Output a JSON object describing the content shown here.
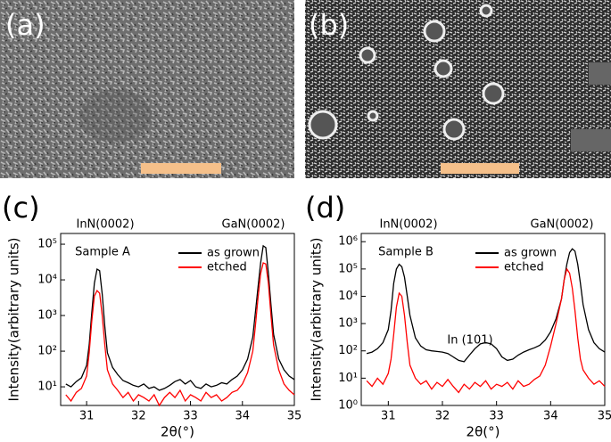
{
  "images": [
    {
      "label": "(a)"
    },
    {
      "label": "(b)"
    }
  ],
  "chart_data": [
    {
      "type": "line",
      "panel_label": "(c)",
      "xlabel": "2θ(°)",
      "ylabel": "Intensity(arbitrary units)",
      "log_y": true,
      "annotations": [
        "InN(0002)",
        "GaN(0002)",
        "Sample A"
      ],
      "x": [
        30.6,
        30.7,
        30.8,
        30.9,
        31.0,
        31.05,
        31.1,
        31.15,
        31.2,
        31.25,
        31.3,
        31.35,
        31.4,
        31.5,
        31.6,
        31.7,
        31.8,
        31.9,
        32.0,
        32.1,
        32.2,
        32.3,
        32.4,
        32.5,
        32.6,
        32.7,
        32.8,
        32.9,
        33.0,
        33.1,
        33.2,
        33.3,
        33.4,
        33.5,
        33.6,
        33.7,
        33.8,
        33.9,
        34.0,
        34.1,
        34.2,
        34.25,
        34.3,
        34.35,
        34.4,
        34.45,
        34.5,
        34.55,
        34.6,
        34.7,
        34.8,
        34.9,
        35.0
      ],
      "series": [
        {
          "name": "as grown",
          "color": "#000000",
          "values": [
            12,
            10,
            14,
            18,
            40,
            150,
            1200,
            8000,
            20000,
            18000,
            4000,
            500,
            90,
            35,
            22,
            15,
            13,
            11,
            10,
            12,
            9,
            10,
            8,
            9,
            11,
            14,
            16,
            12,
            15,
            10,
            9,
            12,
            10,
            11,
            13,
            12,
            16,
            20,
            30,
            60,
            250,
            1200,
            6000,
            30000,
            90000,
            80000,
            15000,
            2000,
            300,
            60,
            30,
            20,
            16
          ]
        },
        {
          "name": "etched",
          "color": "#ff0000",
          "values": [
            6,
            4,
            7,
            9,
            20,
            90,
            700,
            3500,
            5000,
            4200,
            1000,
            150,
            30,
            12,
            8,
            5,
            7,
            4,
            6,
            5,
            4,
            6,
            3,
            5,
            7,
            5,
            8,
            4,
            6,
            5,
            4,
            7,
            5,
            6,
            4,
            5,
            7,
            8,
            12,
            25,
            100,
            500,
            3000,
            15000,
            30000,
            28000,
            8000,
            1000,
            150,
            30,
            12,
            8,
            6
          ]
        }
      ],
      "xlim": [
        30.5,
        35
      ],
      "xticks": [
        31,
        32,
        33,
        34,
        35
      ],
      "ylim": [
        3,
        200000
      ],
      "yticks": [
        {
          "value": 10,
          "label": "10¹"
        },
        {
          "value": 100,
          "label": "10²"
        },
        {
          "value": 1000,
          "label": "10³"
        },
        {
          "value": 10000,
          "label": "10⁴"
        },
        {
          "value": 100000,
          "label": "10⁵"
        }
      ]
    },
    {
      "type": "line",
      "panel_label": "(d)",
      "xlabel": "2θ(°)",
      "ylabel": "Intensity(arbitrary units)",
      "log_y": true,
      "annotations": [
        "InN(0002)",
        "GaN(0002)",
        "Sample B",
        "In (101)"
      ],
      "x": [
        30.6,
        30.7,
        30.8,
        30.9,
        31.0,
        31.05,
        31.1,
        31.15,
        31.2,
        31.25,
        31.3,
        31.35,
        31.4,
        31.5,
        31.6,
        31.7,
        31.8,
        31.9,
        32.0,
        32.1,
        32.2,
        32.3,
        32.4,
        32.5,
        32.6,
        32.7,
        32.8,
        32.9,
        33.0,
        33.1,
        33.2,
        33.3,
        33.4,
        33.5,
        33.6,
        33.7,
        33.8,
        33.9,
        34.0,
        34.1,
        34.2,
        34.25,
        34.3,
        34.35,
        34.4,
        34.45,
        34.5,
        34.55,
        34.6,
        34.7,
        34.8,
        34.9,
        35.0
      ],
      "series": [
        {
          "name": "as grown",
          "color": "#000000",
          "values": [
            80,
            90,
            120,
            200,
            600,
            3000,
            30000,
            100000,
            150000,
            120000,
            50000,
            10000,
            2000,
            300,
            150,
            110,
            100,
            95,
            90,
            80,
            60,
            45,
            40,
            70,
            120,
            180,
            200,
            180,
            120,
            60,
            45,
            50,
            70,
            90,
            110,
            130,
            160,
            250,
            500,
            1500,
            8000,
            40000,
            150000,
            400000,
            550000,
            450000,
            150000,
            30000,
            5000,
            600,
            200,
            120,
            90
          ]
        },
        {
          "name": "etched",
          "color": "#ff0000",
          "values": [
            8,
            5,
            10,
            6,
            15,
            50,
            400,
            4000,
            13000,
            10000,
            2000,
            200,
            30,
            10,
            6,
            8,
            4,
            7,
            5,
            9,
            5,
            3,
            6,
            4,
            7,
            5,
            8,
            4,
            6,
            5,
            7,
            4,
            8,
            5,
            6,
            9,
            12,
            30,
            150,
            1000,
            8000,
            40000,
            100000,
            70000,
            20000,
            3000,
            300,
            50,
            20,
            10,
            6,
            8,
            5
          ]
        }
      ],
      "xlim": [
        30.5,
        35
      ],
      "xticks": [
        31,
        32,
        33,
        34,
        35
      ],
      "ylim": [
        1,
        2000000
      ],
      "yticks": [
        {
          "value": 1,
          "label": "10⁰"
        },
        {
          "value": 10,
          "label": "10¹"
        },
        {
          "value": 100,
          "label": "10²"
        },
        {
          "value": 1000,
          "label": "10³"
        },
        {
          "value": 10000,
          "label": "10⁴"
        },
        {
          "value": 100000,
          "label": "10⁵"
        },
        {
          "value": 1000000,
          "label": "10⁶"
        }
      ]
    }
  ]
}
